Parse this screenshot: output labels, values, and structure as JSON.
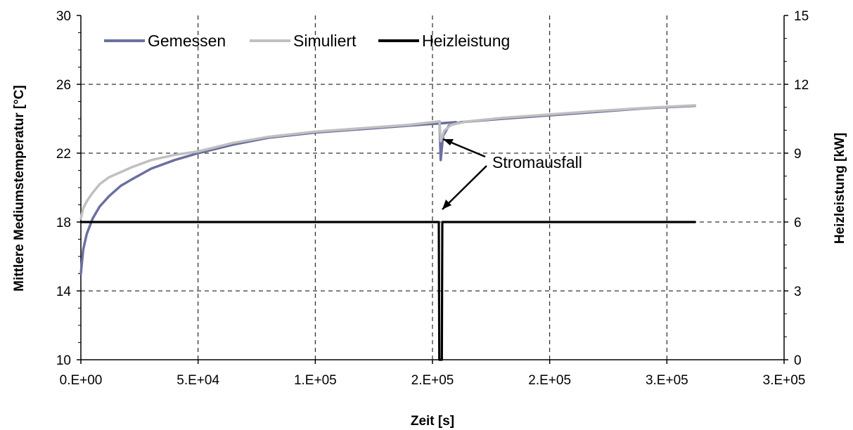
{
  "chart_data": {
    "type": "line",
    "x_label": "Zeit [s]",
    "y_label_left": "Mittlere Mediumstemperatur [°C]",
    "y_label_right": "Heizleistung [kW]",
    "x_ticks": [
      "0.E+00",
      "5.E+04",
      "1.E+05",
      "2.E+05",
      "2.E+05",
      "3.E+05",
      "3.E+05"
    ],
    "y_left_ticks": [
      "10",
      "14",
      "18",
      "22",
      "26",
      "30"
    ],
    "y_right_ticks": [
      "0",
      "3",
      "6",
      "9",
      "12",
      "15"
    ],
    "xlim": [
      0,
      300000
    ],
    "ylim_left": [
      10,
      30
    ],
    "ylim_right": [
      0,
      15
    ],
    "grid": true,
    "legend_position": "top-left",
    "annotation": "Stromausfall",
    "series": [
      {
        "name": "Gemessen",
        "axis": "left",
        "color": "#6b6fa0",
        "points": [
          [
            0,
            15.0
          ],
          [
            1000,
            16.4
          ],
          [
            2500,
            17.3
          ],
          [
            5000,
            18.2
          ],
          [
            8000,
            18.9
          ],
          [
            12000,
            19.5
          ],
          [
            17000,
            20.1
          ],
          [
            22000,
            20.5
          ],
          [
            30000,
            21.1
          ],
          [
            40000,
            21.6
          ],
          [
            50000,
            22.0
          ],
          [
            65000,
            22.5
          ],
          [
            80000,
            22.9
          ],
          [
            100000,
            23.2
          ],
          [
            120000,
            23.4
          ],
          [
            140000,
            23.6
          ],
          [
            160000,
            23.8
          ],
          [
            150000,
            23.7
          ],
          [
            153000,
            23.85
          ],
          [
            153500,
            21.6
          ],
          [
            154500,
            23.0
          ],
          [
            157000,
            23.6
          ],
          [
            162000,
            23.8
          ],
          [
            180000,
            24.0
          ],
          [
            200000,
            24.2
          ],
          [
            220000,
            24.4
          ],
          [
            240000,
            24.6
          ],
          [
            262000,
            24.75
          ]
        ]
      },
      {
        "name": "Simuliert",
        "axis": "left",
        "color": "#c0c0c0",
        "points": [
          [
            0,
            18.2
          ],
          [
            1000,
            18.8
          ],
          [
            2500,
            19.2
          ],
          [
            5000,
            19.7
          ],
          [
            8000,
            20.2
          ],
          [
            12000,
            20.6
          ],
          [
            17000,
            20.9
          ],
          [
            22000,
            21.2
          ],
          [
            30000,
            21.6
          ],
          [
            40000,
            21.9
          ],
          [
            50000,
            22.1
          ],
          [
            65000,
            22.6
          ],
          [
            80000,
            22.95
          ],
          [
            100000,
            23.25
          ],
          [
            120000,
            23.45
          ],
          [
            140000,
            23.65
          ],
          [
            153000,
            23.85
          ],
          [
            153500,
            22.7
          ],
          [
            155000,
            23.3
          ],
          [
            158000,
            23.65
          ],
          [
            165000,
            23.85
          ],
          [
            180000,
            24.05
          ],
          [
            200000,
            24.25
          ],
          [
            220000,
            24.45
          ],
          [
            240000,
            24.62
          ],
          [
            262000,
            24.78
          ]
        ]
      },
      {
        "name": "Heizleistung",
        "axis": "right",
        "color": "#000000",
        "points": [
          [
            0,
            6.0
          ],
          [
            50000,
            6.0
          ],
          [
            100000,
            6.0
          ],
          [
            152700,
            6.0
          ],
          [
            152900,
            0.0
          ],
          [
            154000,
            0.0
          ],
          [
            154200,
            6.0
          ],
          [
            200000,
            6.0
          ],
          [
            262000,
            6.0
          ]
        ]
      }
    ]
  }
}
